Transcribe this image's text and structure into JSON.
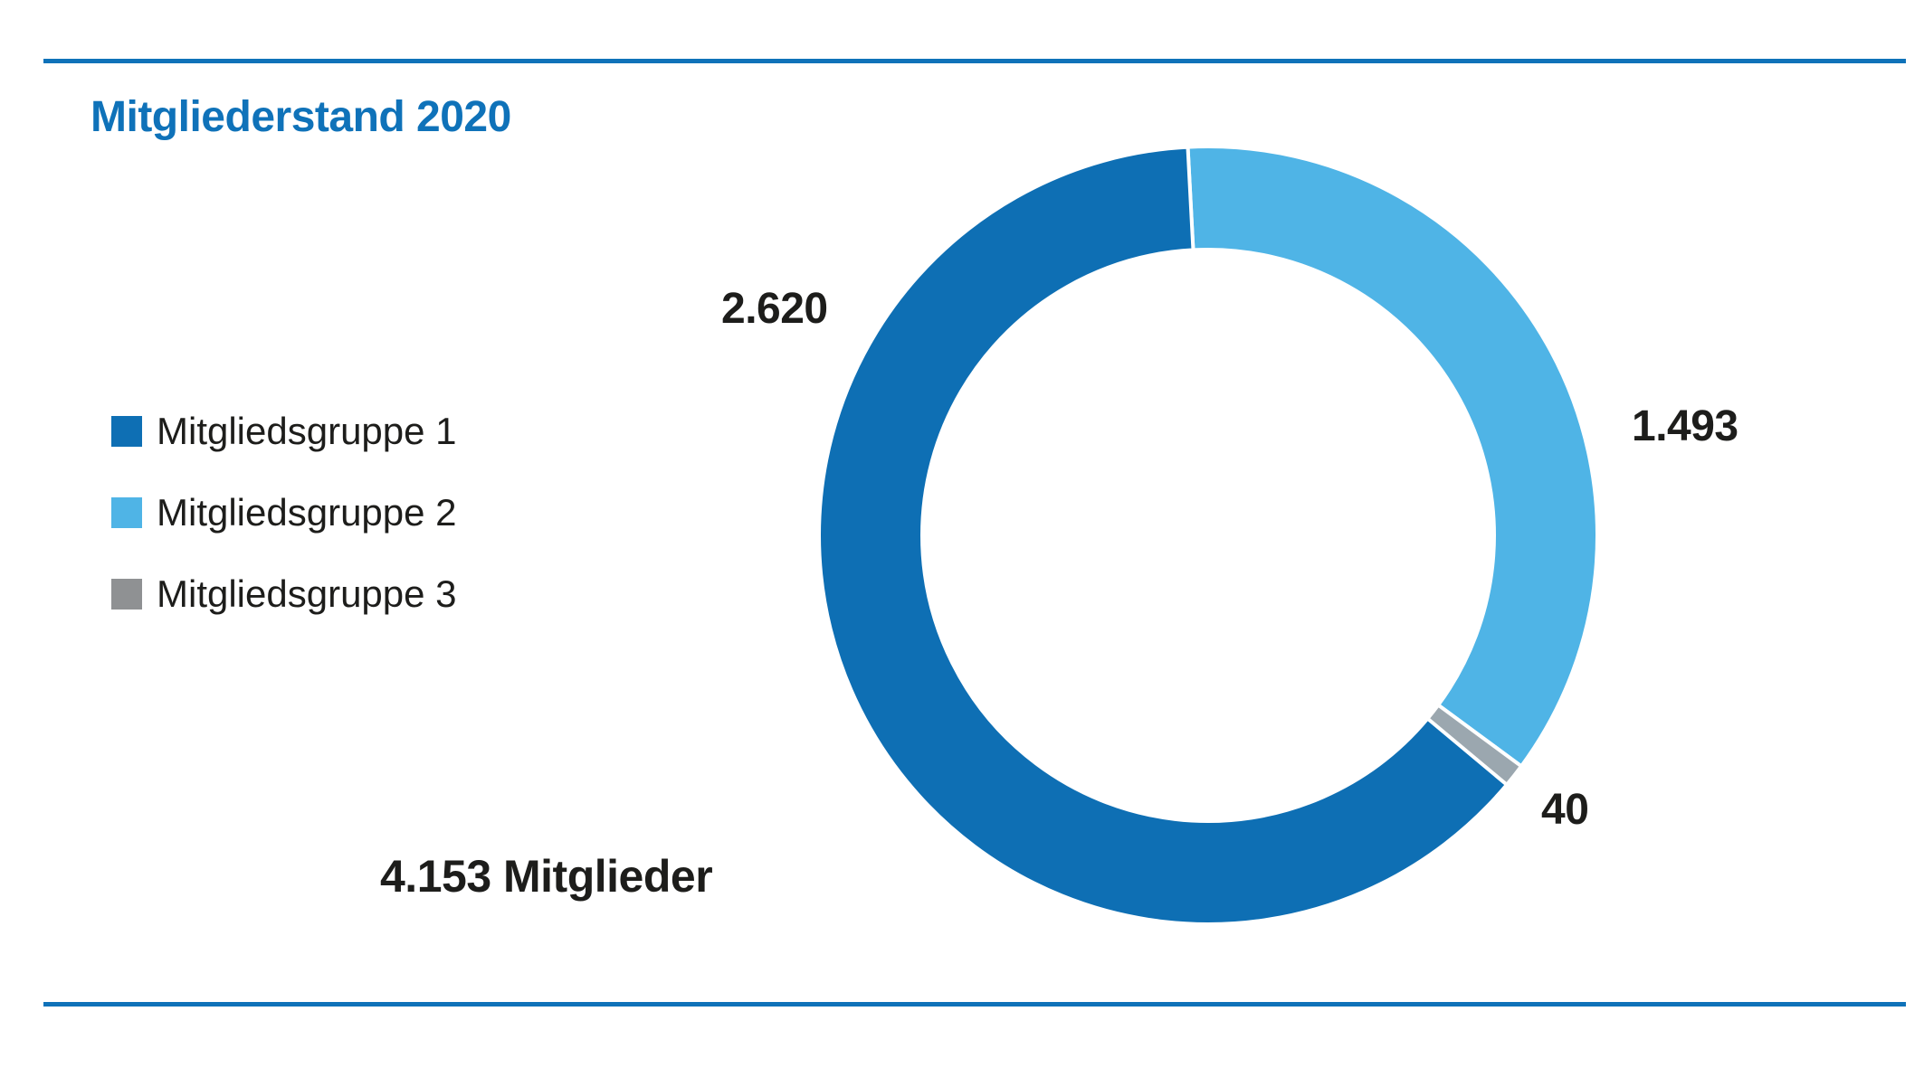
{
  "page": {
    "background": "#FFFFFF",
    "rule_color": "#0F72B9"
  },
  "chart_data": {
    "type": "pie",
    "variant": "donut",
    "title": "Mitgliederstand 2020",
    "title_color": "#0F72B9",
    "label_color": "#1D1D1B",
    "total": 4153,
    "total_label": "4.153 Mitglieder",
    "start_angle_deg": -3,
    "direction": "clockwise",
    "inner_radius_ratio": 0.735,
    "legend_position": "left",
    "separator_color": "#FFFFFF",
    "clockwise_order": [
      "Mitgliedsgruppe 2",
      "Mitgliedsgruppe 3",
      "Mitgliedsgruppe 1"
    ],
    "groups": [
      {
        "name": "Mitgliedsgruppe 1",
        "value": 2620,
        "display_label": "2.620",
        "color": "#0E6FB4"
      },
      {
        "name": "Mitgliedsgruppe 2",
        "value": 1493,
        "display_label": "1.493",
        "color": "#4FB4E6"
      },
      {
        "name": "Mitgliedsgruppe 3",
        "value": 40,
        "display_label": "40",
        "color": "#9BA7AF",
        "legend_color": "#8F9193"
      }
    ]
  }
}
